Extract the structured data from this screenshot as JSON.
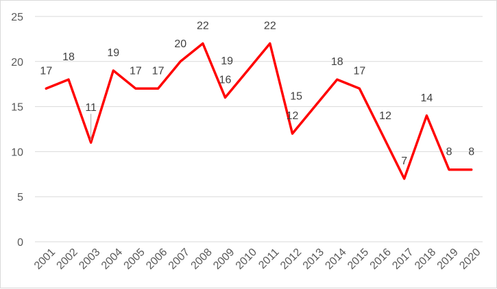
{
  "chart_data": {
    "type": "line",
    "categories": [
      "2001",
      "2002",
      "2003",
      "2004",
      "2005",
      "2006",
      "2007",
      "2008",
      "2009",
      "2010",
      "2011",
      "2012",
      "2013",
      "2014",
      "2015",
      "2016",
      "2017",
      "2018",
      "2019",
      "2020"
    ],
    "series": [
      {
        "values": [
          17,
          18,
          11,
          19,
          17,
          17,
          20,
          22,
          16,
          19,
          22,
          12,
          15,
          18,
          17,
          12,
          7,
          14,
          8,
          8
        ],
        "color": "#ff0000"
      }
    ],
    "data_labels": [
      "17",
      "18",
      "11",
      "19",
      "17",
      "17",
      "20",
      "22",
      "16",
      "19",
      "22",
      "12",
      "15",
      "18",
      "17",
      "12",
      "7",
      "14",
      "8",
      "8"
    ],
    "ylim": [
      0,
      25
    ],
    "yticks": [
      "0",
      "5",
      "10",
      "15",
      "20",
      "25"
    ],
    "grid": true,
    "legend": "none"
  }
}
